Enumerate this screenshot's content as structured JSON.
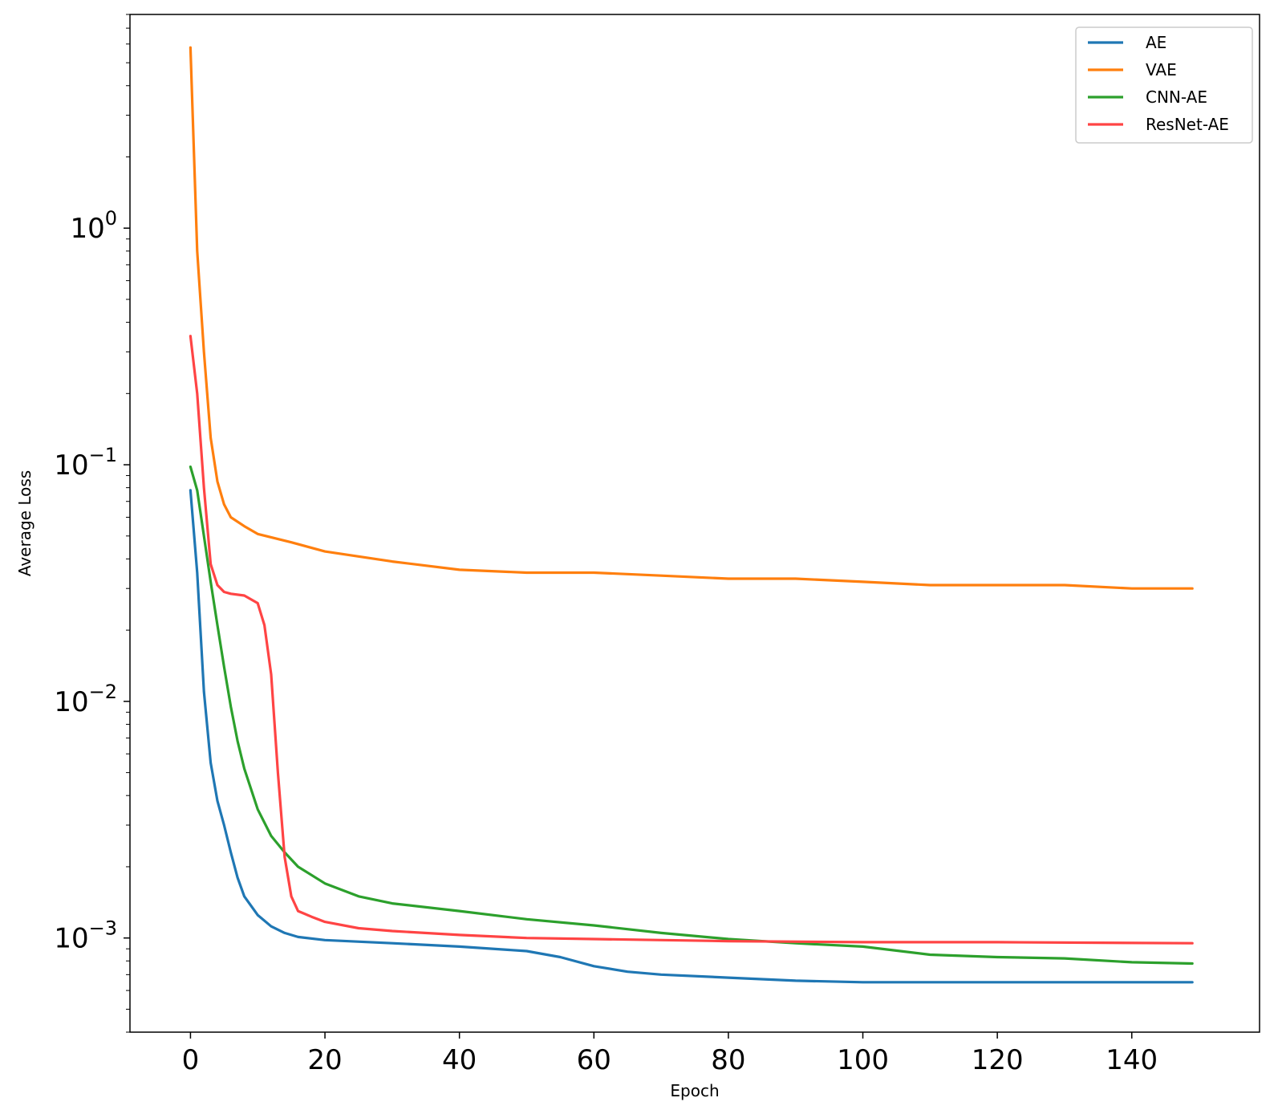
{
  "chart_data": {
    "type": "line",
    "title": "",
    "xlabel": "Epoch",
    "ylabel": "Average Loss",
    "xlim": [
      -9,
      159
    ],
    "ylim": [
      0.0004,
      8
    ],
    "yscale": "log",
    "xticks": [
      0,
      20,
      40,
      60,
      80,
      100,
      120,
      140
    ],
    "yticks": [
      {
        "value": 1,
        "base": "10",
        "exp": "0"
      },
      {
        "value": 0.1,
        "base": "10",
        "exp": "−1"
      },
      {
        "value": 0.01,
        "base": "10",
        "exp": "−2"
      },
      {
        "value": 0.001,
        "base": "10",
        "exp": "−3"
      }
    ],
    "grid": false,
    "legend_position": "top-right",
    "series": [
      {
        "name": "AE",
        "color": "#1f77b4",
        "points": [
          [
            0,
            0.078
          ],
          [
            1,
            0.035
          ],
          [
            2,
            0.011
          ],
          [
            3,
            0.0055
          ],
          [
            4,
            0.0038
          ],
          [
            5,
            0.003
          ],
          [
            6,
            0.0023
          ],
          [
            7,
            0.0018
          ],
          [
            8,
            0.0015
          ],
          [
            10,
            0.00125
          ],
          [
            12,
            0.00112
          ],
          [
            14,
            0.00105
          ],
          [
            16,
            0.00101
          ],
          [
            20,
            0.00098
          ],
          [
            30,
            0.00095
          ],
          [
            40,
            0.00092
          ],
          [
            50,
            0.00088
          ],
          [
            55,
            0.00083
          ],
          [
            60,
            0.00076
          ],
          [
            65,
            0.00072
          ],
          [
            70,
            0.0007
          ],
          [
            80,
            0.00068
          ],
          [
            90,
            0.00066
          ],
          [
            100,
            0.00065
          ],
          [
            120,
            0.00065
          ],
          [
            149,
            0.00065
          ]
        ]
      },
      {
        "name": "VAE",
        "color": "#ff7f0e",
        "points": [
          [
            0,
            5.8
          ],
          [
            1,
            0.8
          ],
          [
            2,
            0.3
          ],
          [
            3,
            0.13
          ],
          [
            4,
            0.085
          ],
          [
            5,
            0.068
          ],
          [
            6,
            0.06
          ],
          [
            8,
            0.055
          ],
          [
            10,
            0.051
          ],
          [
            15,
            0.047
          ],
          [
            20,
            0.043
          ],
          [
            30,
            0.039
          ],
          [
            40,
            0.036
          ],
          [
            50,
            0.035
          ],
          [
            60,
            0.035
          ],
          [
            70,
            0.034
          ],
          [
            80,
            0.033
          ],
          [
            90,
            0.033
          ],
          [
            100,
            0.032
          ],
          [
            110,
            0.031
          ],
          [
            120,
            0.031
          ],
          [
            130,
            0.031
          ],
          [
            140,
            0.03
          ],
          [
            149,
            0.03
          ]
        ]
      },
      {
        "name": "CNN-AE",
        "color": "#2ca02c",
        "points": [
          [
            0,
            0.098
          ],
          [
            1,
            0.078
          ],
          [
            2,
            0.05
          ],
          [
            3,
            0.032
          ],
          [
            4,
            0.021
          ],
          [
            5,
            0.014
          ],
          [
            6,
            0.0095
          ],
          [
            7,
            0.0068
          ],
          [
            8,
            0.0052
          ],
          [
            10,
            0.0035
          ],
          [
            12,
            0.0027
          ],
          [
            14,
            0.0023
          ],
          [
            16,
            0.002
          ],
          [
            20,
            0.0017
          ],
          [
            25,
            0.0015
          ],
          [
            30,
            0.0014
          ],
          [
            40,
            0.0013
          ],
          [
            50,
            0.0012
          ],
          [
            60,
            0.00113
          ],
          [
            70,
            0.00105
          ],
          [
            80,
            0.00099
          ],
          [
            90,
            0.00095
          ],
          [
            100,
            0.00092
          ],
          [
            110,
            0.00085
          ],
          [
            120,
            0.00083
          ],
          [
            130,
            0.00082
          ],
          [
            140,
            0.00079
          ],
          [
            149,
            0.00078
          ]
        ]
      },
      {
        "name": "ResNet-AE",
        "color": "#ff4444",
        "points": [
          [
            0,
            0.35
          ],
          [
            1,
            0.2
          ],
          [
            2,
            0.08
          ],
          [
            3,
            0.038
          ],
          [
            4,
            0.031
          ],
          [
            5,
            0.029
          ],
          [
            6,
            0.0285
          ],
          [
            8,
            0.028
          ],
          [
            10,
            0.026
          ],
          [
            11,
            0.021
          ],
          [
            12,
            0.013
          ],
          [
            13,
            0.005
          ],
          [
            14,
            0.0022
          ],
          [
            15,
            0.0015
          ],
          [
            16,
            0.0013
          ],
          [
            18,
            0.00123
          ],
          [
            20,
            0.00117
          ],
          [
            25,
            0.0011
          ],
          [
            30,
            0.00107
          ],
          [
            40,
            0.00103
          ],
          [
            50,
            0.001
          ],
          [
            60,
            0.00099
          ],
          [
            80,
            0.00097
          ],
          [
            100,
            0.00096
          ],
          [
            120,
            0.00096
          ],
          [
            149,
            0.00095
          ]
        ]
      }
    ]
  }
}
